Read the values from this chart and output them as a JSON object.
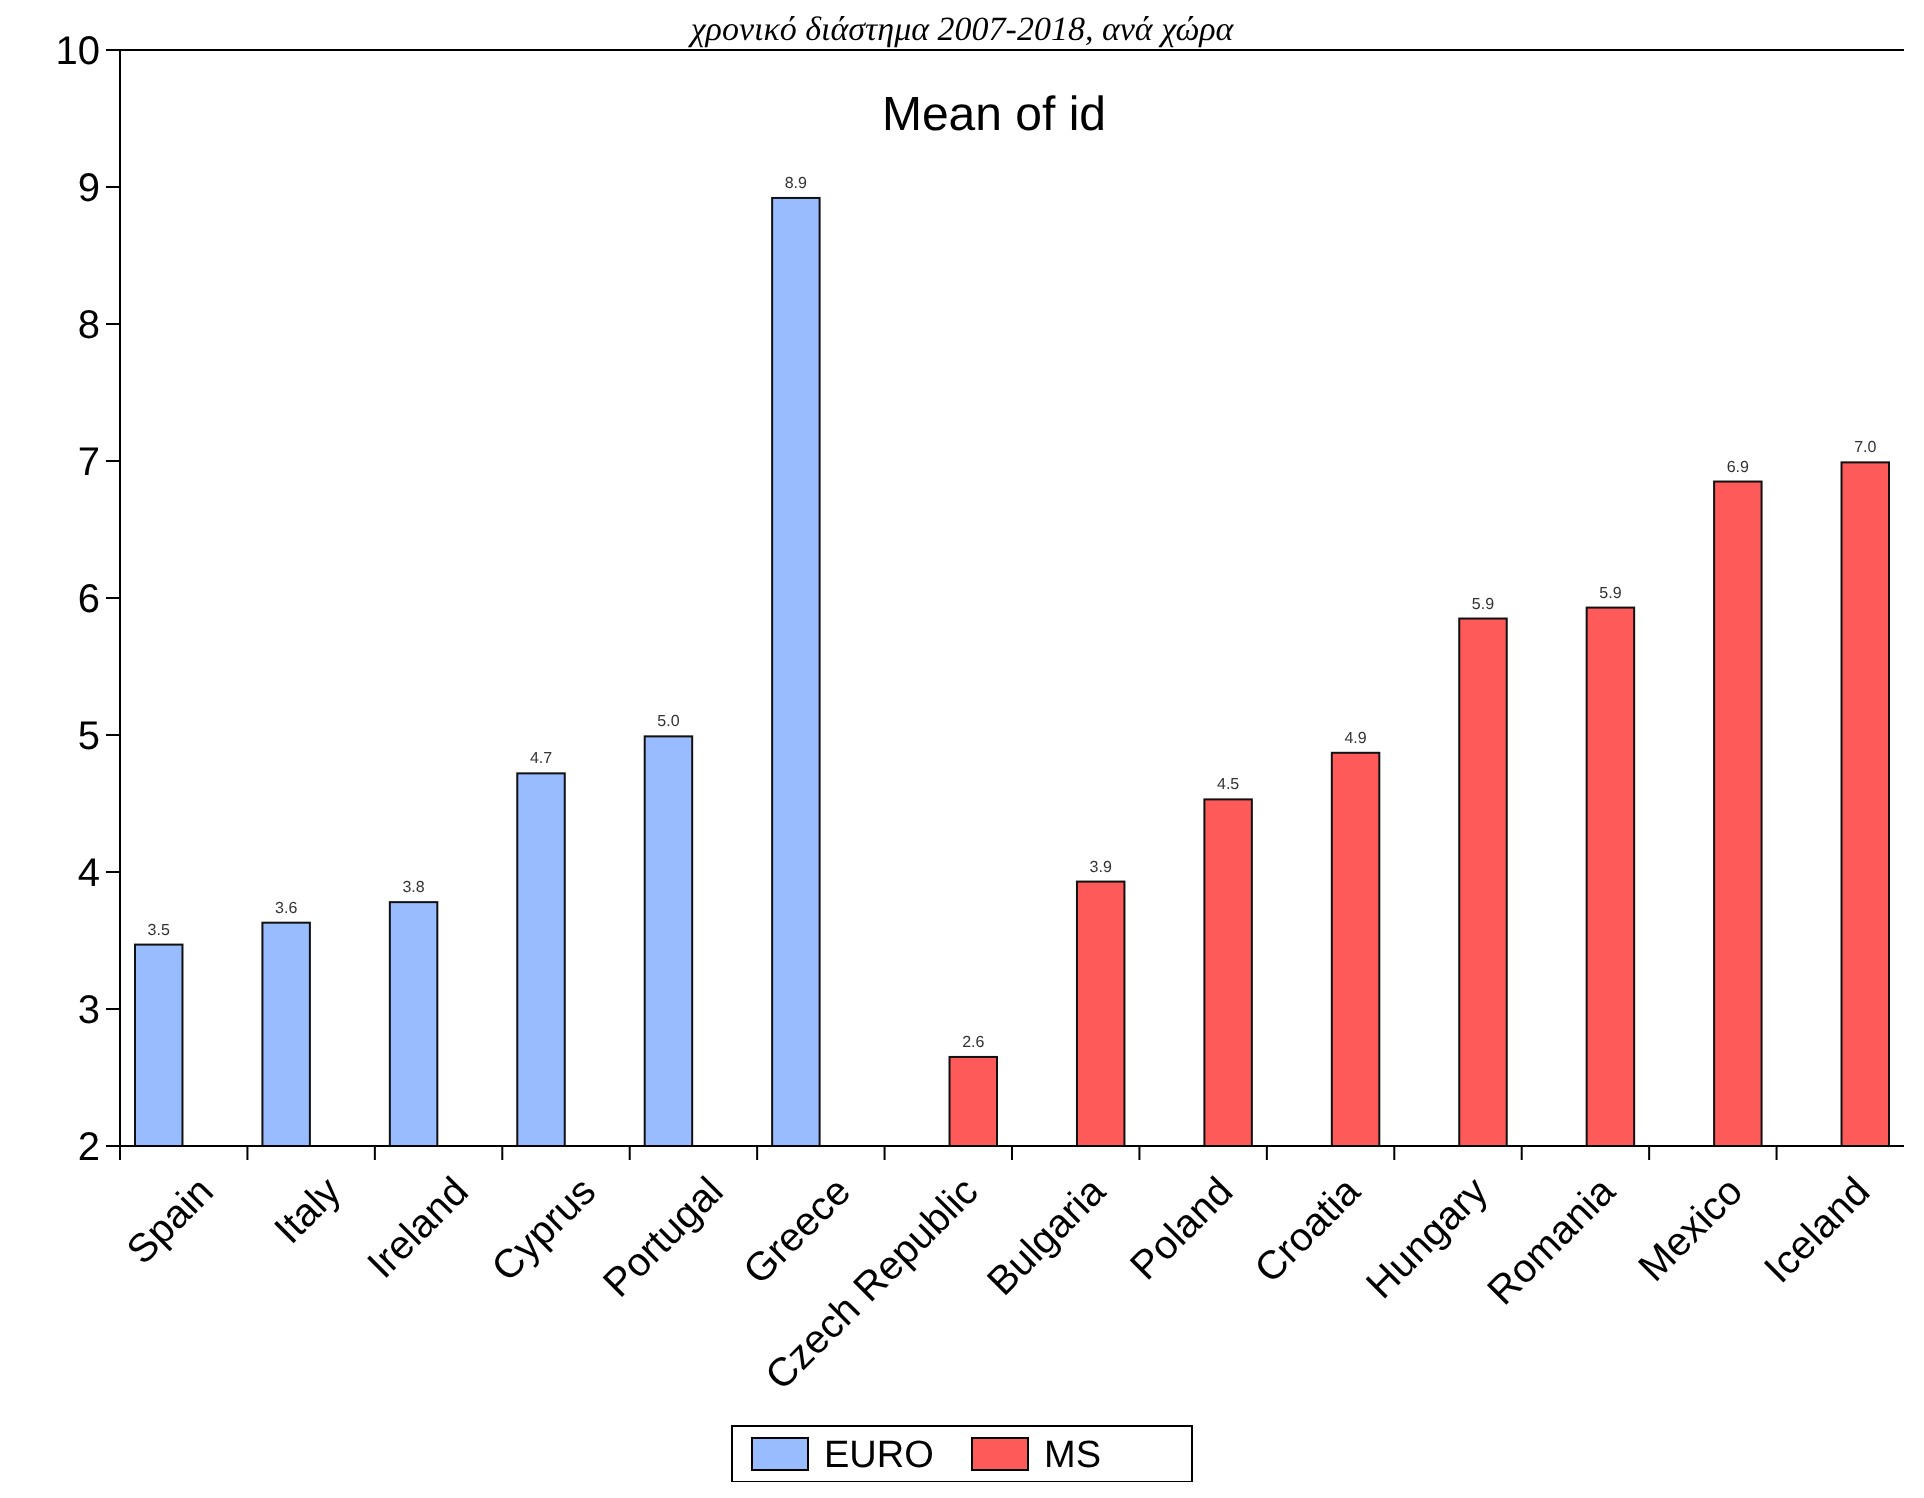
{
  "chart_data": {
    "type": "bar",
    "title": "Mean of id",
    "annotations": [
      "χρονικό διάστημα 2007-2018, ανά χώρα"
    ],
    "categories": [
      "Spain",
      "Italy",
      "Ireland",
      "Cyprus",
      "Portugal",
      "Greece",
      "Czech Republic",
      "Bulgaria",
      "Poland",
      "Croatia",
      "Hungary",
      "Romania",
      "Mexico",
      "Iceland"
    ],
    "series": [
      {
        "name": "EURO",
        "color": "#99bbff",
        "values": [
          3.47,
          3.63,
          3.78,
          4.72,
          4.99,
          8.92,
          null,
          null,
          null,
          null,
          null,
          null,
          null,
          null
        ],
        "value_labels": [
          "3.5",
          "3.6",
          "3.8",
          "4.7",
          "5.0",
          "8.9",
          null,
          null,
          null,
          null,
          null,
          null,
          null,
          null
        ]
      },
      {
        "name": "MS",
        "color": "#ff5a5a",
        "values": [
          null,
          null,
          null,
          null,
          null,
          null,
          2.65,
          3.93,
          4.53,
          4.87,
          5.85,
          5.93,
          6.85,
          6.99
        ],
        "value_labels": [
          null,
          null,
          null,
          null,
          null,
          null,
          "2.6",
          "3.9",
          "4.5",
          "4.9",
          "5.9",
          "5.9",
          "6.9",
          "7.0"
        ]
      }
    ],
    "ylim": [
      2,
      10
    ],
    "yticks": [
      2,
      3,
      4,
      5,
      6,
      7,
      8,
      9,
      10
    ],
    "grid": false,
    "legend": "bottom"
  }
}
